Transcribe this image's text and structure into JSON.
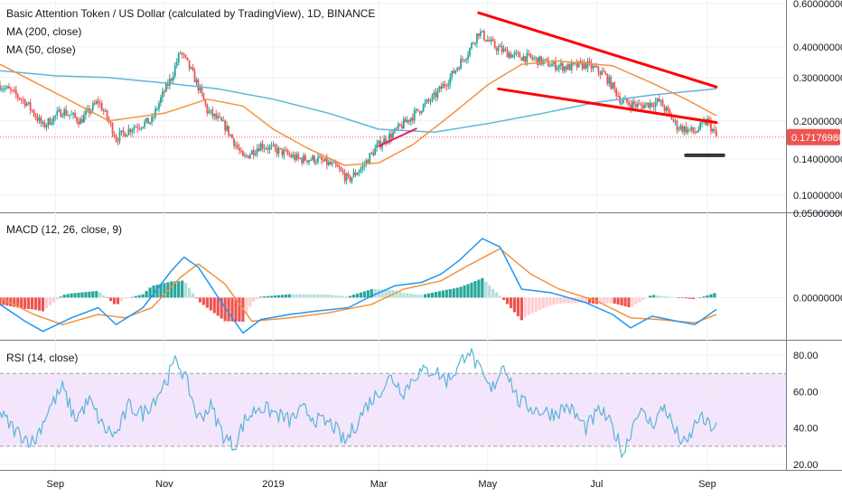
{
  "header": {
    "title": "Basic Attention Token / US Dollar (calculated by TradingView), 1D, BINANCE",
    "ma200_label": "MA (200, close)",
    "ma50_label": "MA (50, close)",
    "macd_label": "MACD (12, 26, close, 9)",
    "rsi_label": "RSI (14, close)"
  },
  "colors": {
    "candle_up": "#26a69a",
    "candle_down": "#ef5350",
    "ma200": "#5eb5dc",
    "ma50": "#f5923e",
    "trendline": "#ff0000",
    "pink_line": "#e91e63",
    "support": "#333333",
    "price_line": "#ef5350",
    "price_tag": "#ef5350",
    "macd": "#2196f3",
    "signal": "#f5923e",
    "hist_pos_strong": "#26a69a",
    "hist_pos_weak": "#b2dfdb",
    "hist_neg_strong": "#ef5350",
    "hist_neg_weak": "#ffcdd2",
    "rsi": "#5ab4d8",
    "rsi_band": "#f3e5fb"
  },
  "price_axis": {
    "ticks": [
      "0.60000000",
      "0.40000000",
      "0.30000000",
      "0.20000000",
      "0.14000000",
      "0.10000000"
    ],
    "tick_values": [
      0.6,
      0.4,
      0.3,
      0.2,
      0.14,
      0.1
    ],
    "current": "0.17176980",
    "current_value": 0.17177
  },
  "macd_axis": {
    "ticks": [
      "0.05000000",
      "0.00000000"
    ],
    "tick_values": [
      0.05,
      0.0
    ]
  },
  "rsi_axis": {
    "ticks": [
      "80.00",
      "60.00",
      "40.00",
      "20.00"
    ],
    "tick_values": [
      80,
      60,
      40,
      20
    ],
    "upper_band": 70,
    "lower_band": 30
  },
  "time_axis": {
    "labels": [
      "Sep",
      "Nov",
      "2019",
      "Mar",
      "May",
      "Jul",
      "Sep"
    ],
    "dates": [
      "2018-09-01",
      "2018-11-01",
      "2019-01-01",
      "2019-03-01",
      "2019-05-01",
      "2019-07-01",
      "2019-09-01"
    ]
  },
  "chart_data": [
    {
      "type": "candlestick",
      "title": "Basic Attention Token / US Dollar (calculated by TradingView), 1D, BINANCE",
      "scale": "log",
      "ylim": [
        0.085,
        0.62
      ],
      "xlim": [
        "2018-08-01",
        "2019-10-15"
      ],
      "close_path": [
        [
          "2018-08-01",
          0.28
        ],
        [
          "2018-08-15",
          0.24
        ],
        [
          "2018-08-25",
          0.19
        ],
        [
          "2018-09-05",
          0.22
        ],
        [
          "2018-09-15",
          0.2
        ],
        [
          "2018-09-25",
          0.24
        ],
        [
          "2018-10-05",
          0.17
        ],
        [
          "2018-10-15",
          0.19
        ],
        [
          "2018-10-25",
          0.2
        ],
        [
          "2018-11-05",
          0.3
        ],
        [
          "2018-11-10",
          0.38
        ],
        [
          "2018-11-15",
          0.33
        ],
        [
          "2018-11-25",
          0.22
        ],
        [
          "2018-12-05",
          0.19
        ],
        [
          "2018-12-15",
          0.14
        ],
        [
          "2018-12-25",
          0.16
        ],
        [
          "2019-01-05",
          0.15
        ],
        [
          "2019-01-15",
          0.14
        ],
        [
          "2019-01-25",
          0.14
        ],
        [
          "2019-02-05",
          0.13
        ],
        [
          "2019-02-12",
          0.115
        ],
        [
          "2019-02-20",
          0.13
        ],
        [
          "2019-03-01",
          0.16
        ],
        [
          "2019-03-10",
          0.18
        ],
        [
          "2019-03-20",
          0.21
        ],
        [
          "2019-04-01",
          0.25
        ],
        [
          "2019-04-10",
          0.3
        ],
        [
          "2019-04-20",
          0.38
        ],
        [
          "2019-04-26",
          0.46
        ],
        [
          "2019-05-05",
          0.4
        ],
        [
          "2019-05-15",
          0.37
        ],
        [
          "2019-05-25",
          0.36
        ],
        [
          "2019-06-05",
          0.34
        ],
        [
          "2019-06-15",
          0.33
        ],
        [
          "2019-06-25",
          0.34
        ],
        [
          "2019-07-05",
          0.31
        ],
        [
          "2019-07-15",
          0.24
        ],
        [
          "2019-07-25",
          0.23
        ],
        [
          "2019-08-05",
          0.24
        ],
        [
          "2019-08-15",
          0.19
        ],
        [
          "2019-08-25",
          0.18
        ],
        [
          "2019-09-01",
          0.2
        ],
        [
          "2019-09-06",
          0.172
        ]
      ],
      "series": [
        {
          "name": "MA (200, close)",
          "points": [
            [
              "2018-08-01",
              0.32
            ],
            [
              "2018-09-01",
              0.305
            ],
            [
              "2018-10-01",
              0.3
            ],
            [
              "2018-11-01",
              0.285
            ],
            [
              "2018-12-01",
              0.27
            ],
            [
              "2019-01-01",
              0.245
            ],
            [
              "2019-02-01",
              0.215
            ],
            [
              "2019-03-01",
              0.185
            ],
            [
              "2019-04-01",
              0.18
            ],
            [
              "2019-05-01",
              0.195
            ],
            [
              "2019-06-01",
              0.215
            ],
            [
              "2019-07-01",
              0.238
            ],
            [
              "2019-08-01",
              0.255
            ],
            [
              "2019-09-06",
              0.27
            ]
          ]
        },
        {
          "name": "MA (50, close)",
          "points": [
            [
              "2018-08-01",
              0.34
            ],
            [
              "2018-09-01",
              0.26
            ],
            [
              "2018-10-01",
              0.2
            ],
            [
              "2018-11-01",
              0.215
            ],
            [
              "2018-11-25",
              0.245
            ],
            [
              "2018-12-15",
              0.23
            ],
            [
              "2019-01-01",
              0.185
            ],
            [
              "2019-01-20",
              0.155
            ],
            [
              "2019-02-10",
              0.132
            ],
            [
              "2019-03-01",
              0.135
            ],
            [
              "2019-03-20",
              0.16
            ],
            [
              "2019-04-10",
              0.21
            ],
            [
              "2019-05-01",
              0.28
            ],
            [
              "2019-05-20",
              0.34
            ],
            [
              "2019-06-10",
              0.35
            ],
            [
              "2019-07-10",
              0.335
            ],
            [
              "2019-08-01",
              0.285
            ],
            [
              "2019-08-20",
              0.245
            ],
            [
              "2019-09-06",
              0.21
            ]
          ]
        }
      ],
      "drawings": [
        {
          "name": "upper-trendline",
          "from": [
            "2019-04-26",
            0.55
          ],
          "to": [
            "2019-09-06",
            0.275
          ]
        },
        {
          "name": "lower-trendline",
          "from": [
            "2019-05-07",
            0.27
          ],
          "to": [
            "2019-09-06",
            0.197
          ]
        },
        {
          "name": "short-uptrend",
          "from": [
            "2019-03-01",
            0.158
          ],
          "to": [
            "2019-03-22",
            0.186
          ]
        },
        {
          "name": "support-bar",
          "from": [
            "2019-08-20",
            0.145
          ],
          "to": [
            "2019-09-10",
            0.145
          ]
        }
      ]
    },
    {
      "type": "line",
      "title": "MACD (12, 26, close, 9)",
      "ylim": [
        -0.025,
        0.05
      ],
      "series": [
        {
          "name": "MACD",
          "points": [
            [
              "2018-08-01",
              -0.004
            ],
            [
              "2018-08-15",
              -0.014
            ],
            [
              "2018-08-25",
              -0.02
            ],
            [
              "2018-09-10",
              -0.012
            ],
            [
              "2018-09-25",
              -0.006
            ],
            [
              "2018-10-05",
              -0.016
            ],
            [
              "2018-10-20",
              -0.006
            ],
            [
              "2018-11-05",
              0.016
            ],
            [
              "2018-11-12",
              0.024
            ],
            [
              "2018-11-20",
              0.018
            ],
            [
              "2018-12-05",
              -0.006
            ],
            [
              "2018-12-15",
              -0.021
            ],
            [
              "2018-12-25",
              -0.013
            ],
            [
              "2019-01-10",
              -0.01
            ],
            [
              "2019-01-25",
              -0.008
            ],
            [
              "2019-02-12",
              -0.006
            ],
            [
              "2019-02-25",
              0.001
            ],
            [
              "2019-03-10",
              0.007
            ],
            [
              "2019-03-25",
              0.009
            ],
            [
              "2019-04-05",
              0.014
            ],
            [
              "2019-04-15",
              0.022
            ],
            [
              "2019-04-28",
              0.035
            ],
            [
              "2019-05-08",
              0.03
            ],
            [
              "2019-05-20",
              0.005
            ],
            [
              "2019-06-05",
              0.003
            ],
            [
              "2019-06-25",
              -0.003
            ],
            [
              "2019-07-10",
              -0.01
            ],
            [
              "2019-07-20",
              -0.018
            ],
            [
              "2019-08-01",
              -0.011
            ],
            [
              "2019-08-15",
              -0.014
            ],
            [
              "2019-08-25",
              -0.016
            ],
            [
              "2019-09-06",
              -0.007
            ]
          ]
        },
        {
          "name": "Signal",
          "points": [
            [
              "2018-08-01",
              0.0
            ],
            [
              "2018-08-20",
              -0.01
            ],
            [
              "2018-09-05",
              -0.016
            ],
            [
              "2018-09-25",
              -0.01
            ],
            [
              "2018-10-10",
              -0.012
            ],
            [
              "2018-10-25",
              -0.006
            ],
            [
              "2018-11-10",
              0.012
            ],
            [
              "2018-11-20",
              0.02
            ],
            [
              "2018-12-05",
              0.008
            ],
            [
              "2018-12-20",
              -0.014
            ],
            [
              "2019-01-10",
              -0.012
            ],
            [
              "2019-02-01",
              -0.009
            ],
            [
              "2019-02-25",
              -0.004
            ],
            [
              "2019-03-15",
              0.005
            ],
            [
              "2019-04-05",
              0.01
            ],
            [
              "2019-04-20",
              0.019
            ],
            [
              "2019-05-08",
              0.029
            ],
            [
              "2019-05-25",
              0.014
            ],
            [
              "2019-06-10",
              0.005
            ],
            [
              "2019-07-01",
              -0.002
            ],
            [
              "2019-07-20",
              -0.012
            ],
            [
              "2019-08-05",
              -0.013
            ],
            [
              "2019-08-25",
              -0.015
            ],
            [
              "2019-09-06",
              -0.01
            ]
          ]
        }
      ]
    },
    {
      "type": "line",
      "title": "RSI (14, close)",
      "ylim": [
        17,
        88
      ],
      "series": [
        {
          "name": "RSI",
          "points": [
            [
              "2018-08-01",
              48
            ],
            [
              "2018-08-10",
              38
            ],
            [
              "2018-08-20",
              32
            ],
            [
              "2018-08-28",
              50
            ],
            [
              "2018-09-05",
              62
            ],
            [
              "2018-09-12",
              45
            ],
            [
              "2018-09-20",
              55
            ],
            [
              "2018-09-28",
              40
            ],
            [
              "2018-10-05",
              36
            ],
            [
              "2018-10-12",
              52
            ],
            [
              "2018-10-20",
              48
            ],
            [
              "2018-10-28",
              58
            ],
            [
              "2018-11-03",
              68
            ],
            [
              "2018-11-08",
              78
            ],
            [
              "2018-11-14",
              64
            ],
            [
              "2018-11-20",
              45
            ],
            [
              "2018-11-27",
              52
            ],
            [
              "2018-12-04",
              36
            ],
            [
              "2018-12-10",
              30
            ],
            [
              "2018-12-16",
              44
            ],
            [
              "2018-12-24",
              52
            ],
            [
              "2019-01-02",
              48
            ],
            [
              "2019-01-10",
              44
            ],
            [
              "2019-01-18",
              50
            ],
            [
              "2019-01-26",
              44
            ],
            [
              "2019-02-03",
              42
            ],
            [
              "2019-02-10",
              32
            ],
            [
              "2019-02-15",
              40
            ],
            [
              "2019-02-22",
              52
            ],
            [
              "2019-03-01",
              60
            ],
            [
              "2019-03-08",
              68
            ],
            [
              "2019-03-15",
              60
            ],
            [
              "2019-03-22",
              70
            ],
            [
              "2019-04-01",
              72
            ],
            [
              "2019-04-08",
              66
            ],
            [
              "2019-04-15",
              74
            ],
            [
              "2019-04-20",
              84
            ],
            [
              "2019-04-26",
              72
            ],
            [
              "2019-05-03",
              60
            ],
            [
              "2019-05-10",
              76
            ],
            [
              "2019-05-18",
              55
            ],
            [
              "2019-05-28",
              50
            ],
            [
              "2019-06-07",
              48
            ],
            [
              "2019-06-15",
              52
            ],
            [
              "2019-06-25",
              40
            ],
            [
              "2019-07-03",
              50
            ],
            [
              "2019-07-10",
              40
            ],
            [
              "2019-07-16",
              26
            ],
            [
              "2019-07-24",
              50
            ],
            [
              "2019-08-01",
              42
            ],
            [
              "2019-08-08",
              52
            ],
            [
              "2019-08-14",
              38
            ],
            [
              "2019-08-20",
              30
            ],
            [
              "2019-08-27",
              46
            ],
            [
              "2019-09-01",
              42
            ],
            [
              "2019-09-06",
              40
            ]
          ]
        }
      ]
    }
  ]
}
